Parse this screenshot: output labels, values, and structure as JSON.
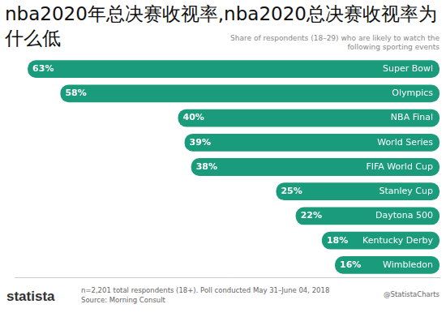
{
  "chart_data": {
    "type": "bar",
    "orientation": "horizontal",
    "title": "nba2020年总决赛收视率,nba2020总决赛收视率为什么低",
    "subtitle": "Share of respondents (18–29) who are likely to watch the following sporting events",
    "categories": [
      "Super Bowl",
      "Olympics",
      "NBA Final",
      "World Series",
      "FIFA World Cup",
      "Stanley Cup",
      "Daytona 500",
      "Kentucky Derby",
      "Wimbledon"
    ],
    "values": [
      63,
      58,
      40,
      39,
      38,
      25,
      22,
      18,
      16
    ],
    "value_labels": [
      "63%",
      "58%",
      "40%",
      "39%",
      "38%",
      "25%",
      "22%",
      "18%",
      "16%"
    ],
    "color": "#1a9b7b",
    "xlim": [
      0,
      65
    ],
    "grid": false,
    "data_labels": true,
    "tick_labels": false,
    "note": "n=2,201 total respondents (18+). Poll conducted May 31–June 04, 2018",
    "source": "Source: Morning Consult",
    "brand": "statista",
    "credit": "@StatistaCharts"
  }
}
